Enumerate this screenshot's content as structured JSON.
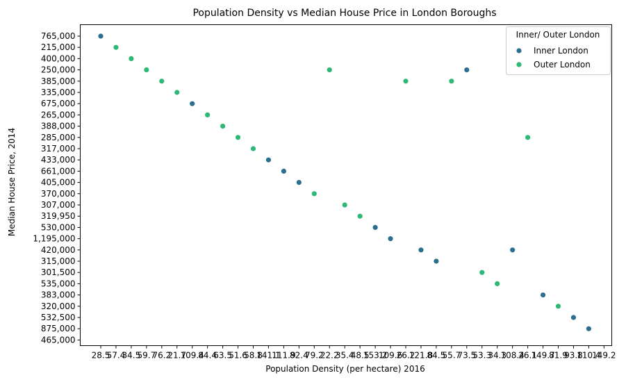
{
  "chart_data": {
    "type": "scatter",
    "title": "Population Density vs Median House Price in London Boroughs",
    "xlabel": "Population Density (per hectare) 2016",
    "ylabel": "Median House Price, 2014",
    "x_axis_kind": "categorical",
    "y_axis_kind": "categorical",
    "x_categories": [
      "28.5",
      "57.4",
      "34.5",
      "59.7",
      "76.2",
      "21.7",
      "109.4",
      "84.4",
      "63.5",
      "51.6",
      "58.8",
      "141.1",
      "111.9",
      "82.4",
      "79.2",
      "22.2",
      "35.4",
      "48.5",
      "153.2",
      "109.6",
      "26.2",
      "121.8",
      "84.5",
      "55.7",
      "73.5",
      "53.3",
      "34.3",
      "108.4",
      "26.1",
      "149.7",
      "81.9",
      "93.8",
      "110.4",
      "149.2"
    ],
    "y_categories": [
      "765,000",
      "215,000",
      "400,000",
      "250,000",
      "385,000",
      "335,000",
      "675,000",
      "265,000",
      "388,000",
      "285,000",
      "317,000",
      "433,000",
      "661,000",
      "405,000",
      "370,000",
      "307,000",
      "319,950",
      "530,000",
      "1,195,000",
      "420,000",
      "315,000",
      "301,500",
      "535,000",
      "383,000",
      "320,000",
      "532,500",
      "875,000",
      "465,000"
    ],
    "grid": false,
    "legend_title": "Inner/ Outer London",
    "legend_position": "top-right",
    "series": [
      {
        "name": "Inner London",
        "color": "#2c6e8e",
        "points": [
          {
            "x": "28.5",
            "y": "765,000"
          },
          {
            "x": "109.4",
            "y": "675,000"
          },
          {
            "x": "141.1",
            "y": "433,000"
          },
          {
            "x": "111.9",
            "y": "661,000"
          },
          {
            "x": "82.4",
            "y": "405,000"
          },
          {
            "x": "153.2",
            "y": "530,000"
          },
          {
            "x": "109.6",
            "y": "1,195,000"
          },
          {
            "x": "121.8",
            "y": "420,000"
          },
          {
            "x": "84.5",
            "y": "315,000"
          },
          {
            "x": "73.5",
            "y": "250,000"
          },
          {
            "x": "108.4",
            "y": "420,000"
          },
          {
            "x": "149.7",
            "y": "383,000"
          },
          {
            "x": "93.8",
            "y": "532,500"
          },
          {
            "x": "110.4",
            "y": "875,000"
          }
        ]
      },
      {
        "name": "Outer London",
        "color": "#2db876",
        "points": [
          {
            "x": "57.4",
            "y": "215,000"
          },
          {
            "x": "34.5",
            "y": "400,000"
          },
          {
            "x": "59.7",
            "y": "250,000"
          },
          {
            "x": "76.2",
            "y": "385,000"
          },
          {
            "x": "21.7",
            "y": "335,000"
          },
          {
            "x": "84.4",
            "y": "265,000"
          },
          {
            "x": "63.5",
            "y": "388,000"
          },
          {
            "x": "51.6",
            "y": "285,000"
          },
          {
            "x": "58.8",
            "y": "317,000"
          },
          {
            "x": "79.2",
            "y": "370,000"
          },
          {
            "x": "22.2",
            "y": "250,000"
          },
          {
            "x": "35.4",
            "y": "307,000"
          },
          {
            "x": "48.5",
            "y": "319,950"
          },
          {
            "x": "26.2",
            "y": "385,000"
          },
          {
            "x": "55.7",
            "y": "385,000"
          },
          {
            "x": "53.3",
            "y": "301,500"
          },
          {
            "x": "34.3",
            "y": "535,000"
          },
          {
            "x": "26.1",
            "y": "285,000"
          },
          {
            "x": "81.9",
            "y": "320,000"
          }
        ]
      }
    ]
  }
}
